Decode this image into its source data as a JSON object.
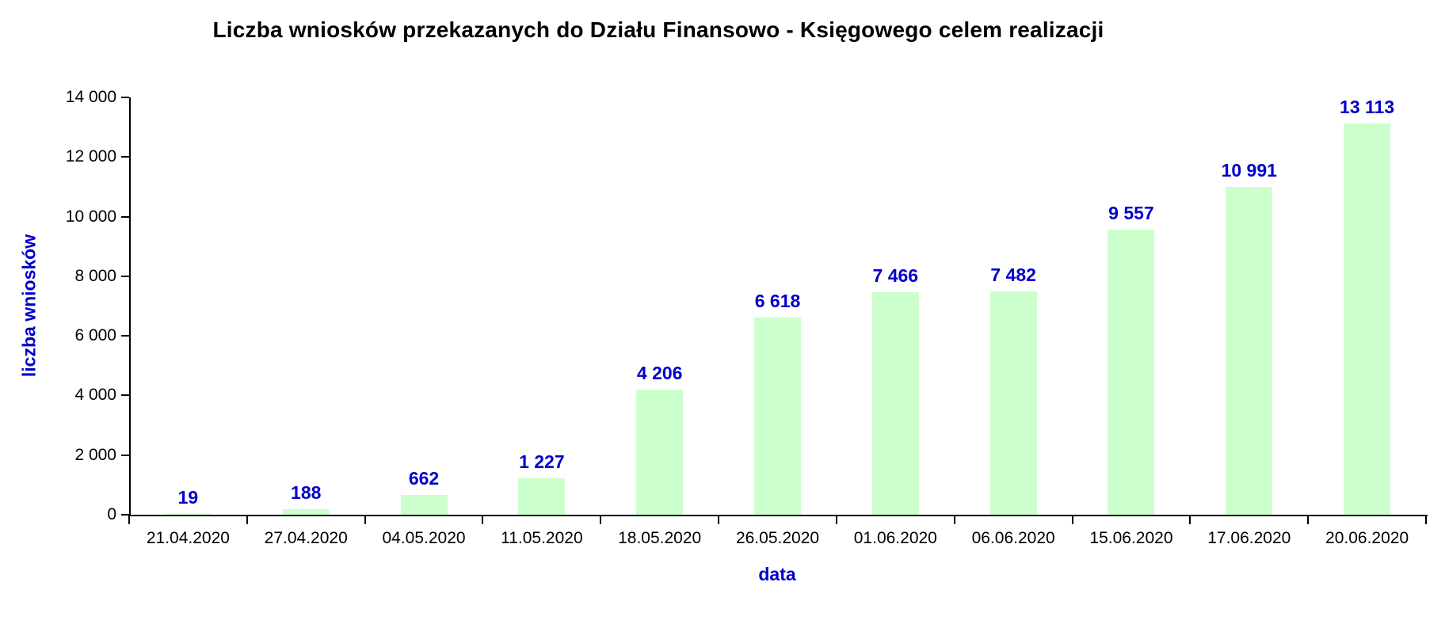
{
  "chart_data": {
    "type": "bar",
    "title": "Liczba wniosków przekazanych do Działu Finansowo - Księgowego celem realizacji",
    "xlabel": "data",
    "ylabel": "liczba wniosków",
    "categories": [
      "21.04.2020",
      "27.04.2020",
      "04.05.2020",
      "11.05.2020",
      "18.05.2020",
      "26.05.2020",
      "01.06.2020",
      "06.06.2020",
      "15.06.2020",
      "17.06.2020",
      "20.06.2020"
    ],
    "values": [
      19,
      188,
      662,
      1227,
      4206,
      6618,
      7466,
      7482,
      9557,
      10991,
      13113
    ],
    "value_labels": [
      "19",
      "188",
      "662",
      "1 227",
      "4 206",
      "6 618",
      "7 466",
      "7 482",
      "9 557",
      "10 991",
      "13 113"
    ],
    "ylim": [
      0,
      14000
    ],
    "ytick_interval": 2000,
    "ytick_labels": [
      "0",
      "2 000",
      "4 000",
      "6 000",
      "8 000",
      "10 000",
      "12 000",
      "14 000"
    ],
    "grid": false,
    "legend": "none",
    "colors": {
      "bar_fill": "#CCFFCC",
      "value_label": "#0000CC",
      "axis_title": "#0000CC",
      "tick_label": "#000000",
      "axis_line": "#000000",
      "title": "#000000",
      "background": "#FFFFFF"
    }
  }
}
